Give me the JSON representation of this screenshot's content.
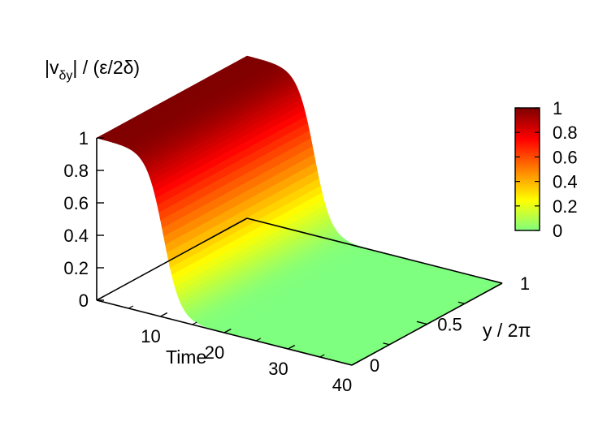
{
  "chart_data": {
    "type": "surface",
    "title": "",
    "zlabel": {
      "base": "|v",
      "sub": "δy",
      "rest": "| / (ε/2δ)"
    },
    "xlabel": "Time",
    "ylabel": "y / 2π",
    "xlim": [
      0,
      40
    ],
    "ylim": [
      0,
      1
    ],
    "zlim": [
      0,
      1
    ],
    "x_ticks": [
      "10",
      "20",
      "30",
      "40"
    ],
    "y_ticks": [
      "0",
      "0.5",
      "1"
    ],
    "z_ticks": [
      "0",
      "0.2",
      "0.4",
      "0.6",
      "0.8",
      "1"
    ],
    "surface": {
      "description_function": "z = 1 / (1 + exp((t - 10.5) / 1.3)), constant in y",
      "time": [
        0,
        2,
        4,
        6,
        8,
        9,
        10,
        11,
        12,
        13,
        14,
        16,
        18,
        20,
        25,
        30,
        35,
        40
      ],
      "value": [
        1.0,
        1.0,
        0.997,
        0.97,
        0.88,
        0.76,
        0.6,
        0.42,
        0.27,
        0.16,
        0.09,
        0.02,
        0.005,
        0.0,
        0.0,
        0.0,
        0.0,
        0.0
      ]
    },
    "colorbar": {
      "ticks": [
        "0",
        "0.2",
        "0.4",
        "0.6",
        "0.8",
        "1"
      ],
      "range": [
        0,
        1
      ],
      "palette": [
        "#7fff7f",
        "#ffff00",
        "#ff8000",
        "#ff0000",
        "#800000"
      ]
    },
    "grid": false
  }
}
